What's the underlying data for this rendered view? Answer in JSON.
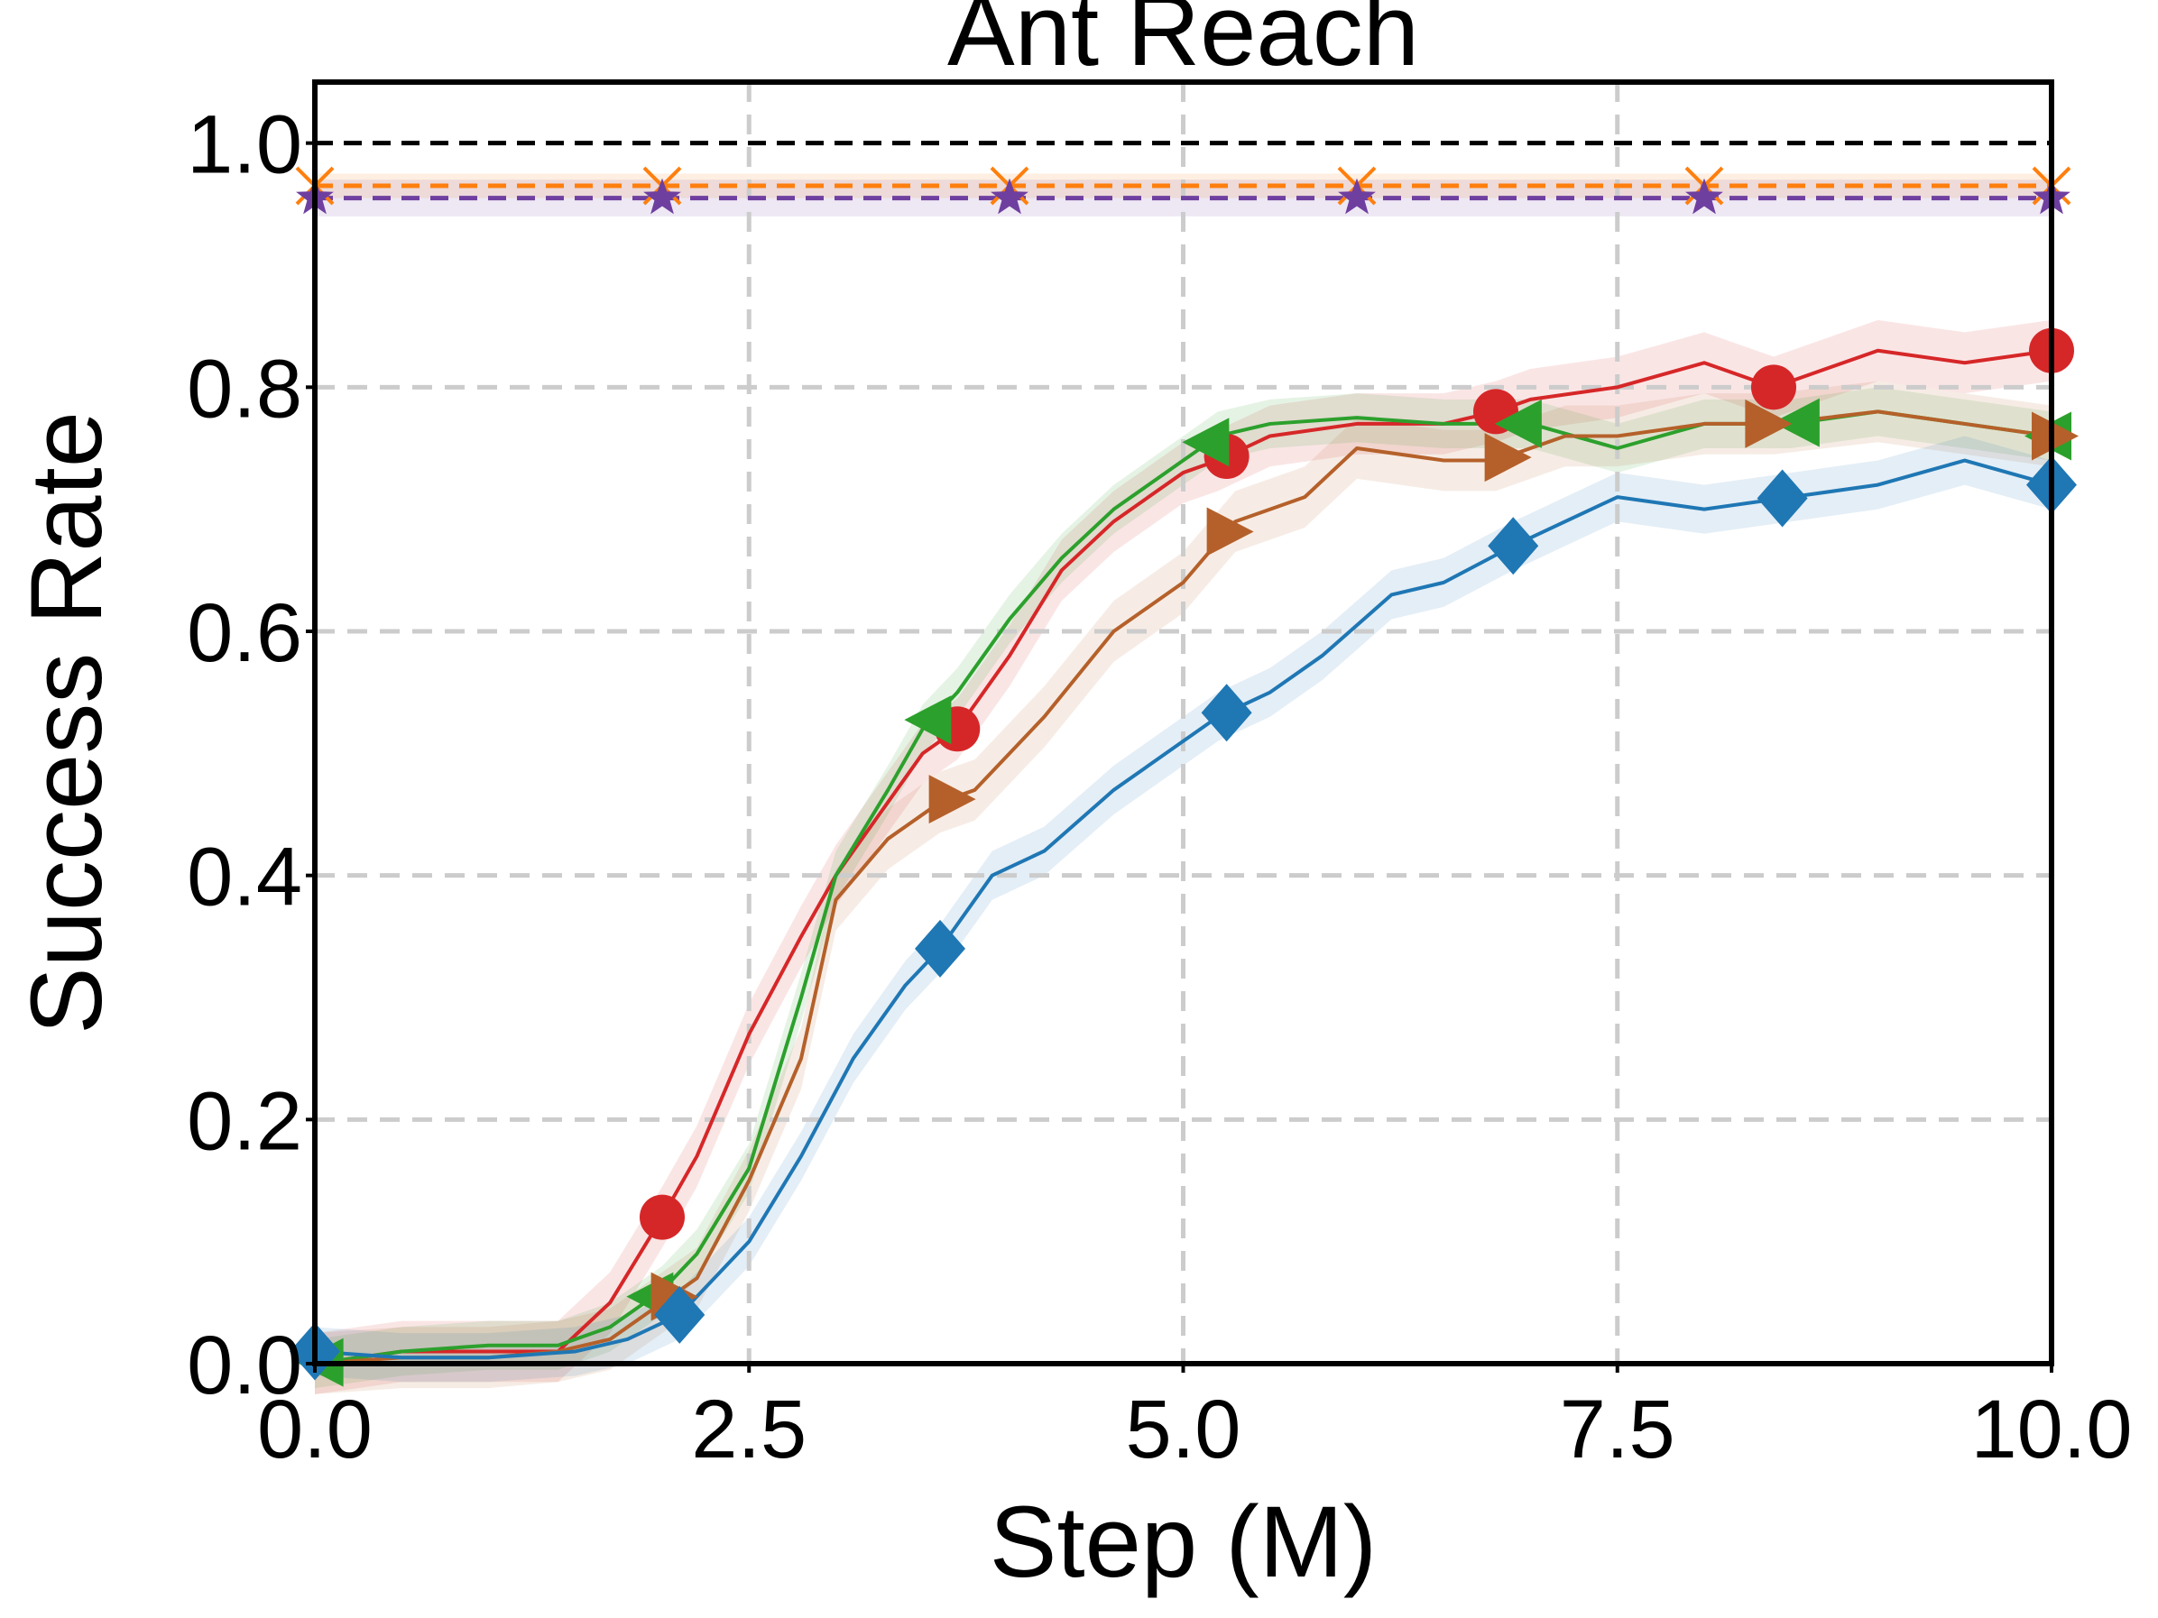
{
  "chart_data": {
    "type": "line",
    "title": "Ant Reach",
    "xlabel": "Step (M)",
    "ylabel": "Success Rate",
    "xlim": [
      0,
      10
    ],
    "ylim": [
      0,
      1.05
    ],
    "xticks": [
      0,
      2.5,
      5,
      7.5,
      10
    ],
    "xtick_labels": [
      "0.0",
      "2.5",
      "5.0",
      "7.5",
      "10.0"
    ],
    "yticks": [
      0,
      0.2,
      0.4,
      0.6,
      0.8,
      1.0
    ],
    "ytick_labels": [
      "0.0",
      "0.2",
      "0.4",
      "0.6",
      "0.8",
      "1.0"
    ],
    "grid": true,
    "reference_lines": [
      {
        "y": 1.0,
        "color": "#000000",
        "style": "dashed"
      }
    ],
    "series": [
      {
        "color": "#d62728",
        "marker": "circle",
        "style": "solid",
        "band": 0.025,
        "x": [
          0,
          0.5,
          1.0,
          1.4,
          1.7,
          2.0,
          2.2,
          2.5,
          2.8,
          3.0,
          3.3,
          3.5,
          3.7,
          4.0,
          4.3,
          4.6,
          5.0,
          5.2,
          5.5,
          6.0,
          6.5,
          6.8,
          7.0,
          7.5,
          8.0,
          8.4,
          9.0,
          9.5,
          10.0
        ],
        "y": [
          0.0,
          0.01,
          0.01,
          0.01,
          0.05,
          0.12,
          0.17,
          0.27,
          0.35,
          0.4,
          0.46,
          0.5,
          0.52,
          0.58,
          0.65,
          0.69,
          0.73,
          0.74,
          0.76,
          0.77,
          0.77,
          0.78,
          0.79,
          0.8,
          0.82,
          0.8,
          0.83,
          0.82,
          0.83
        ]
      },
      {
        "color": "#2ca02c",
        "marker": "triangle-left",
        "style": "solid",
        "band": 0.02,
        "x": [
          0,
          0.5,
          1.0,
          1.4,
          1.7,
          2.0,
          2.2,
          2.5,
          2.8,
          3.0,
          3.3,
          3.5,
          3.7,
          4.0,
          4.3,
          4.6,
          5.0,
          5.2,
          5.5,
          6.0,
          6.5,
          7.0,
          7.5,
          8.0,
          8.5,
          9.0,
          9.5,
          10.0
        ],
        "y": [
          0.0,
          0.01,
          0.015,
          0.015,
          0.03,
          0.06,
          0.09,
          0.16,
          0.3,
          0.4,
          0.47,
          0.52,
          0.55,
          0.61,
          0.66,
          0.7,
          0.74,
          0.76,
          0.77,
          0.775,
          0.77,
          0.77,
          0.75,
          0.77,
          0.77,
          0.78,
          0.77,
          0.76
        ]
      },
      {
        "color": "#b5602a",
        "marker": "triangle-right",
        "style": "solid",
        "band": 0.025,
        "x": [
          0,
          0.5,
          1.0,
          1.4,
          1.7,
          2.0,
          2.2,
          2.5,
          2.8,
          3.0,
          3.3,
          3.6,
          3.8,
          4.2,
          4.6,
          5.0,
          5.3,
          5.7,
          6.0,
          6.5,
          6.8,
          7.2,
          7.5,
          8.0,
          8.4,
          9.0,
          9.5,
          10.0
        ],
        "y": [
          0.0,
          0.005,
          0.005,
          0.01,
          0.02,
          0.05,
          0.07,
          0.15,
          0.25,
          0.38,
          0.43,
          0.46,
          0.47,
          0.53,
          0.6,
          0.64,
          0.69,
          0.71,
          0.75,
          0.74,
          0.74,
          0.76,
          0.76,
          0.77,
          0.77,
          0.78,
          0.77,
          0.76
        ]
      },
      {
        "color": "#1f77b4",
        "marker": "diamond",
        "style": "solid",
        "band": 0.02,
        "x": [
          0,
          0.5,
          1.0,
          1.5,
          1.8,
          2.1,
          2.5,
          2.8,
          3.1,
          3.4,
          3.6,
          3.9,
          4.2,
          4.6,
          5.0,
          5.2,
          5.5,
          5.8,
          6.2,
          6.5,
          6.9,
          7.2,
          7.5,
          8.0,
          8.5,
          9.0,
          9.5,
          10.0
        ],
        "y": [
          0.01,
          0.005,
          0.005,
          0.01,
          0.02,
          0.04,
          0.1,
          0.17,
          0.25,
          0.31,
          0.34,
          0.4,
          0.42,
          0.47,
          0.51,
          0.53,
          0.55,
          0.58,
          0.63,
          0.64,
          0.67,
          0.69,
          0.71,
          0.7,
          0.71,
          0.72,
          0.74,
          0.72
        ]
      },
      {
        "color": "#ff7f0e",
        "marker": "x",
        "style": "dashed",
        "band": 0.01,
        "x": [
          0,
          2,
          4,
          6,
          8,
          10
        ],
        "y": [
          0.965,
          0.965,
          0.965,
          0.965,
          0.965,
          0.965
        ]
      },
      {
        "color": "#6f3fa0",
        "marker": "star",
        "style": "dashed",
        "band": 0.015,
        "x": [
          0,
          2,
          4,
          6,
          8,
          10
        ],
        "y": [
          0.955,
          0.955,
          0.955,
          0.955,
          0.955,
          0.955
        ]
      }
    ],
    "marker_points": [
      {
        "series": 0,
        "x": [
          2.0,
          3.7,
          5.25,
          6.8,
          8.4,
          10.0
        ]
      },
      {
        "series": 1,
        "x": [
          0.05,
          1.95,
          3.55,
          5.15,
          6.95,
          8.55,
          10.0
        ]
      },
      {
        "series": 2,
        "x": [
          2.05,
          3.65,
          5.25,
          6.85,
          8.35,
          10.0
        ]
      },
      {
        "series": 3,
        "x": [
          0.0,
          2.1,
          3.6,
          5.25,
          6.9,
          8.45,
          10.0
        ]
      },
      {
        "series": 4,
        "x": [
          0,
          2,
          4,
          6,
          8,
          10
        ]
      },
      {
        "series": 5,
        "x": [
          0,
          2,
          4,
          6,
          8,
          10
        ]
      }
    ]
  }
}
